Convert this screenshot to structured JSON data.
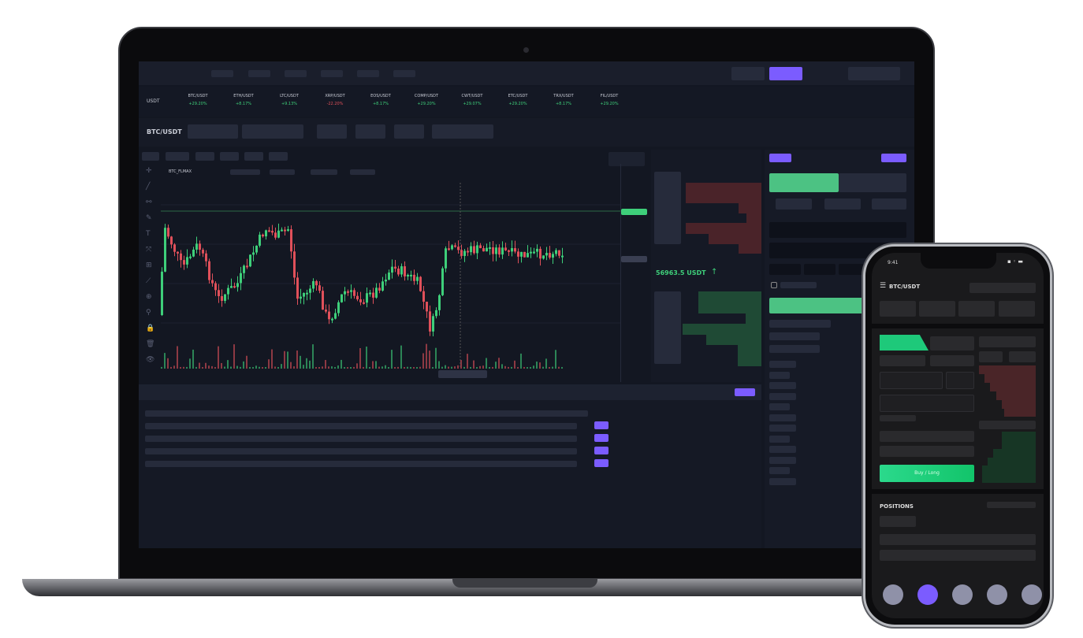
{
  "colors": {
    "accent": "#7b5cff",
    "up": "#3ecf7a",
    "down": "#e0505a",
    "bg": "#131722",
    "buy": "#1ec97a"
  },
  "desktop": {
    "quote_label": "USDT",
    "tickers": [
      {
        "pair": "BTC/USDT",
        "change": "+29.20%",
        "dir": "up"
      },
      {
        "pair": "ETH/USDT",
        "change": "+8.17%",
        "dir": "up"
      },
      {
        "pair": "LTC/USDT",
        "change": "+9.13%",
        "dir": "up"
      },
      {
        "pair": "XRP/USDT",
        "change": "-22.20%",
        "dir": "down"
      },
      {
        "pair": "EOS/USDT",
        "change": "+8.17%",
        "dir": "up"
      },
      {
        "pair": "COMP/USDT",
        "change": "+29.20%",
        "dir": "up"
      },
      {
        "pair": "CWT/USDT",
        "change": "+29.07%",
        "dir": "up"
      },
      {
        "pair": "ETC/USDT",
        "change": "+29.20%",
        "dir": "up"
      },
      {
        "pair": "TRX/USDT",
        "change": "+8.17%",
        "dir": "up"
      },
      {
        "pair": "FIL/USDT",
        "change": "+29.20%",
        "dir": "up"
      }
    ],
    "pair": "BTC/USDT",
    "chart": {
      "symbol": "BTC_FLMAX",
      "icons": [
        "crosshair-icon",
        "line-icon",
        "fib-icon",
        "brush-icon",
        "text-icon",
        "pattern-icon",
        "measure-icon",
        "ruler-icon",
        "zoom-icon",
        "magnet-icon",
        "lock-icon",
        "trash-icon",
        "eye-icon"
      ]
    },
    "orderbook": {
      "last_price": "56963.5 USDT",
      "direction": "up"
    }
  },
  "mobile": {
    "time": "9:41",
    "pair": "BTC/USDT",
    "buy_button": "Buy / Long",
    "positions_title": "POSITIONS"
  }
}
